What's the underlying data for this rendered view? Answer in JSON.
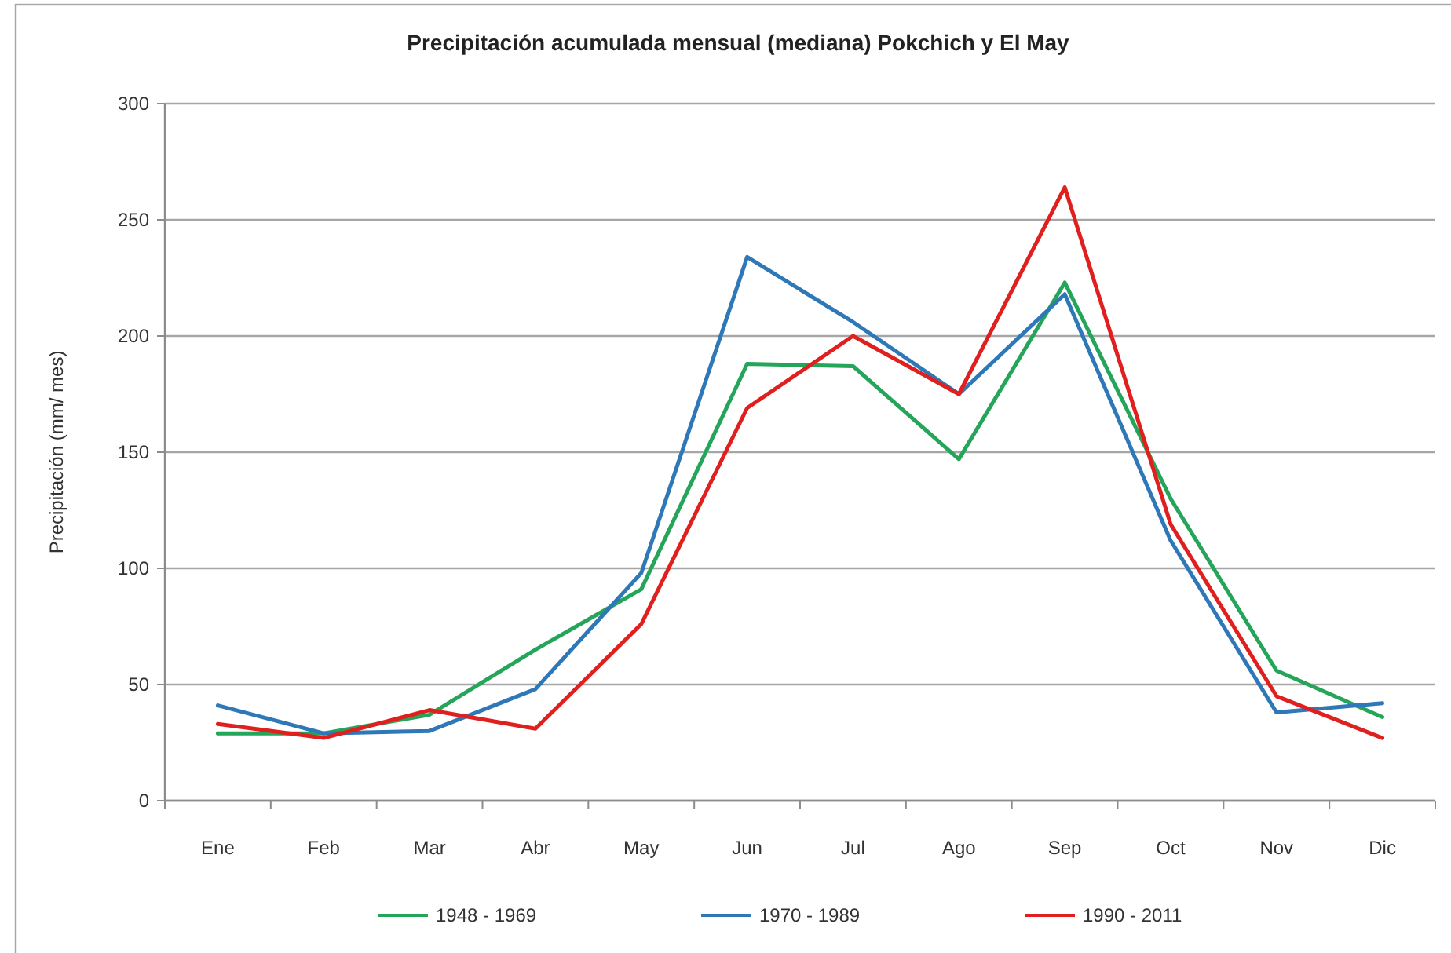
{
  "chart_data": {
    "type": "line",
    "title": "Precipitación acumulada mensual  (mediana) Pokchich y El May",
    "ylabel": "Precipitación (mm/ mes)",
    "categories": [
      "Ene",
      "Feb",
      "Mar",
      "Abr",
      "May",
      "Jun",
      "Jul",
      "Ago",
      "Sep",
      "Oct",
      "Nov",
      "Dic"
    ],
    "series": [
      {
        "name": "1948 - 1969",
        "color": "#25a55a",
        "values": [
          29,
          29,
          37,
          65,
          91,
          188,
          187,
          147,
          223,
          130,
          56,
          36
        ]
      },
      {
        "name": "1970 - 1989",
        "color": "#2e78b8",
        "values": [
          41,
          29,
          30,
          48,
          98,
          234,
          206,
          175,
          218,
          112,
          38,
          42
        ]
      },
      {
        "name": "1990 - 2011",
        "color": "#e0201e",
        "values": [
          33,
          27,
          39,
          31,
          76,
          169,
          200,
          175,
          264,
          119,
          45,
          27
        ]
      }
    ],
    "ylim": [
      0,
      300
    ],
    "yticks": [
      0,
      50,
      100,
      150,
      200,
      250,
      300
    ],
    "grid": "y",
    "legend": "bottom",
    "line_style": "solid",
    "marker": "none"
  }
}
